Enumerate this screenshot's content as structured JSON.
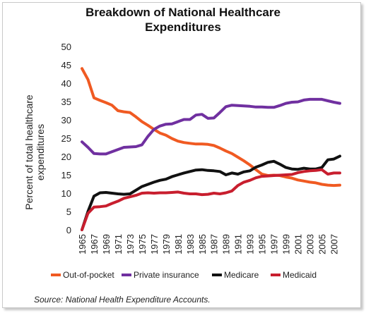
{
  "chart_data": {
    "type": "line",
    "title_lines": [
      "Breakdown of National Healthcare",
      "Expenditures"
    ],
    "ylabel_lines": [
      "Percent of total healthcare",
      "expenditures"
    ],
    "xlabel": "",
    "ylim": [
      0,
      50
    ],
    "yticks": [
      0,
      5,
      10,
      15,
      20,
      25,
      30,
      35,
      40,
      45,
      50
    ],
    "xlim": [
      1965,
      2008
    ],
    "xticks": [
      1965,
      1967,
      1969,
      1971,
      1973,
      1975,
      1977,
      1979,
      1981,
      1983,
      1985,
      1987,
      1989,
      1991,
      1993,
      1995,
      1997,
      1999,
      2001,
      2003,
      2005,
      2007
    ],
    "grid": false,
    "legend_position": "bottom",
    "x": [
      1965,
      1966,
      1967,
      1968,
      1969,
      1970,
      1971,
      1972,
      1973,
      1974,
      1975,
      1976,
      1977,
      1978,
      1979,
      1980,
      1981,
      1982,
      1983,
      1984,
      1985,
      1986,
      1987,
      1988,
      1989,
      1990,
      1991,
      1992,
      1993,
      1994,
      1995,
      1996,
      1997,
      1998,
      1999,
      2000,
      2001,
      2002,
      2003,
      2004,
      2005,
      2006,
      2007,
      2008
    ],
    "series": [
      {
        "name": "Out-of-pocket",
        "color": "#f05a22",
        "values": [
          44,
          41,
          36,
          35.3,
          34.7,
          34,
          32.5,
          32.2,
          32,
          30.8,
          29.5,
          28.5,
          27.4,
          26.4,
          25.8,
          24.9,
          24.2,
          23.8,
          23.6,
          23.4,
          23.4,
          23.3,
          23.0,
          22.3,
          21.5,
          20.8,
          19.8,
          18.8,
          17.7,
          16.4,
          15.2,
          14.8,
          14.9,
          14.8,
          14.4,
          14.1,
          13.6,
          13.3,
          13.0,
          12.8,
          12.4,
          12.2,
          12.1,
          12.2
        ]
      },
      {
        "name": "Private insurance",
        "color": "#7030a0",
        "values": [
          24,
          22.5,
          20.8,
          20.7,
          20.7,
          21.3,
          21.9,
          22.5,
          22.6,
          22.7,
          23.2,
          25.5,
          27.4,
          28.3,
          28.8,
          28.9,
          29.5,
          30.1,
          30.1,
          31.3,
          31.5,
          30.4,
          30.5,
          32.0,
          33.6,
          34.0,
          33.9,
          33.8,
          33.7,
          33.5,
          33.5,
          33.4,
          33.4,
          33.9,
          34.5,
          34.8,
          34.9,
          35.4,
          35.6,
          35.6,
          35.6,
          35.2,
          34.8,
          34.5
        ]
      },
      {
        "name": "Medicare",
        "color": "#111111",
        "values": [
          0,
          5,
          9.2,
          10.1,
          10.2,
          10.0,
          9.8,
          9.7,
          9.8,
          10.8,
          11.8,
          12.4,
          13.0,
          13.5,
          13.8,
          14.5,
          15.0,
          15.5,
          15.9,
          16.3,
          16.4,
          16.2,
          16.1,
          15.9,
          15.0,
          15.5,
          15.2,
          15.8,
          16.1,
          17.1,
          17.7,
          18.4,
          18.7,
          17.9,
          17.0,
          16.6,
          16.5,
          16.8,
          16.6,
          16.6,
          17.0,
          19.1,
          19.3,
          20.1
        ]
      },
      {
        "name": "Medicaid",
        "color": "#c81e2e",
        "values": [
          0,
          4.5,
          6.2,
          6.3,
          6.5,
          7.2,
          7.8,
          8.6,
          9.0,
          9.4,
          10.0,
          10.1,
          10.0,
          10.1,
          10.1,
          10.2,
          10.3,
          10.0,
          9.8,
          9.8,
          9.6,
          9.7,
          10.0,
          9.8,
          10.1,
          10.6,
          12.1,
          13.0,
          13.5,
          14.2,
          14.6,
          14.7,
          14.8,
          14.9,
          15.0,
          15.1,
          15.6,
          15.9,
          16.1,
          16.2,
          16.4,
          15.2,
          15.5,
          15.5
        ]
      }
    ]
  },
  "legend": [
    {
      "label": "Out-of-pocket",
      "color": "#f05a22"
    },
    {
      "label": "Private insurance",
      "color": "#7030a0"
    },
    {
      "label": "Medicare",
      "color": "#111111"
    },
    {
      "label": "Medicaid",
      "color": "#c81e2e"
    }
  ],
  "source": "Source: National Health Expenditure Accounts."
}
